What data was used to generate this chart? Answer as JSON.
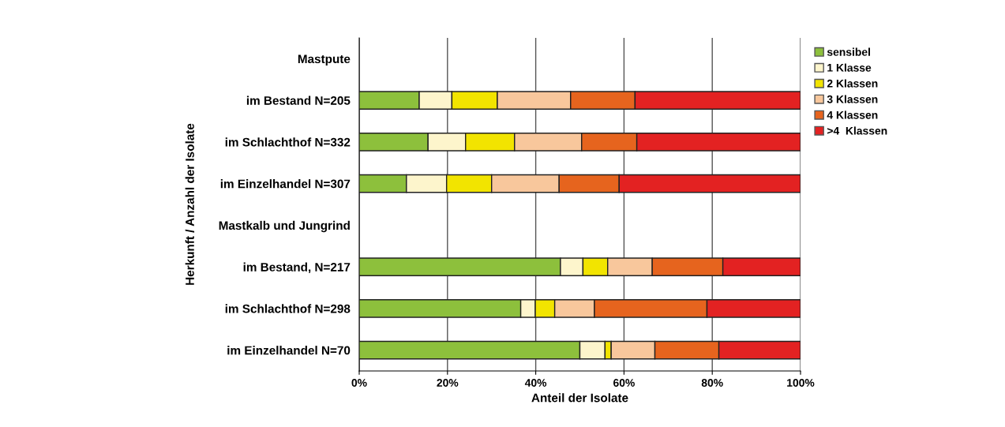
{
  "chart_data": {
    "type": "bar",
    "orientation": "horizontal",
    "stacked": true,
    "categories": [
      "Mastpute",
      "im Bestand N=205",
      "im Schlachthof N=332",
      "im Einzelhandel N=307",
      "Mastkalb und Jungrind",
      "im Bestand, N=217",
      "im Schlachthof N=298",
      "im Einzelhandel N=70"
    ],
    "series": [
      {
        "name": "sensibel",
        "color": "#8dc03c",
        "values": [
          null,
          13.6,
          15.6,
          10.7,
          null,
          45.6,
          36.6,
          50.0
        ]
      },
      {
        "name": "1 Klasse",
        "color": "#fdf5cc",
        "values": [
          null,
          7.4,
          8.5,
          9.1,
          null,
          5.1,
          3.3,
          5.7
        ]
      },
      {
        "name": "2 Klassen",
        "color": "#f2e400",
        "values": [
          null,
          10.3,
          11.1,
          10.2,
          null,
          5.6,
          4.4,
          1.4
        ]
      },
      {
        "name": "3 Klassen",
        "color": "#f8c79c",
        "values": [
          null,
          16.6,
          15.2,
          15.3,
          null,
          10.1,
          9.0,
          9.9
        ]
      },
      {
        "name": "4 Klassen",
        "color": "#e6641e",
        "values": [
          null,
          14.6,
          12.5,
          13.6,
          null,
          16.0,
          25.5,
          14.5
        ]
      },
      {
        "name": ">4  Klassen",
        "color": "#e32222",
        "values": [
          null,
          37.5,
          37.1,
          41.1,
          null,
          17.6,
          21.2,
          18.5
        ]
      }
    ],
    "xlim": [
      0,
      100
    ],
    "xticks": [
      {
        "value": 0,
        "label": "0%"
      },
      {
        "value": 20,
        "label": "20%"
      },
      {
        "value": 40,
        "label": "40%"
      },
      {
        "value": 60,
        "label": "60%"
      },
      {
        "value": 80,
        "label": "80%"
      },
      {
        "value": 100,
        "label": "100%"
      }
    ],
    "xlabel": "Anteil der Isolate",
    "ylabel": "Herkunft / Anzahl der Isolate",
    "grid": "x",
    "legend": "right"
  }
}
